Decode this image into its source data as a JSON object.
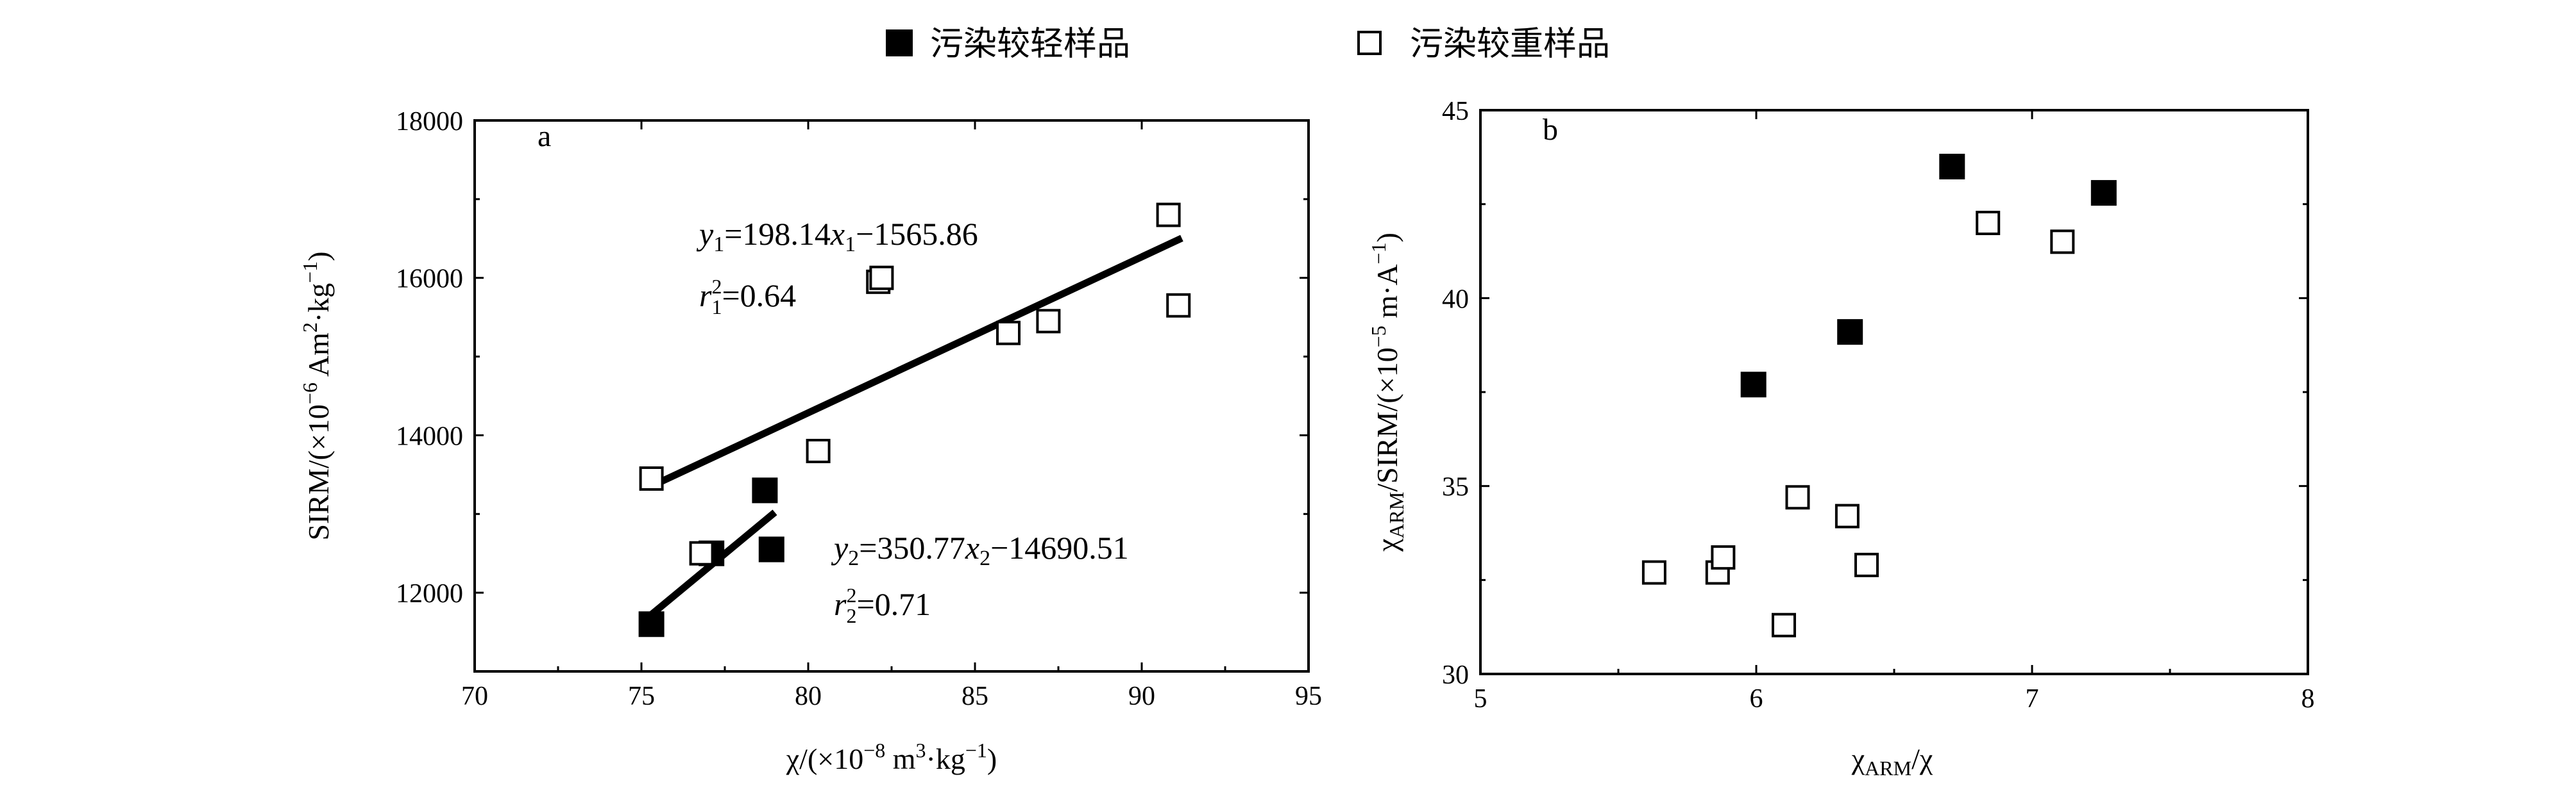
{
  "legend": {
    "light": "污染较轻样品",
    "heavy": "污染较重样品"
  },
  "chart_data": [
    {
      "type": "scatter",
      "panel_label": "a",
      "xlabel": {
        "pre": "χ/(×10",
        "exp1": "−8",
        "mid": " m",
        "exp2": "3",
        "mid2": "·kg",
        "exp3": "−1",
        "post": ")"
      },
      "ylabel": {
        "pre": "SIRM/(×10",
        "exp1": "−6",
        "mid": " Am",
        "exp2": "2",
        "mid2": "·kg",
        "exp3": "−1",
        "post": ")"
      },
      "xlim": [
        70,
        95
      ],
      "ylim": [
        11000,
        18000
      ],
      "xticks": [
        70,
        75,
        80,
        85,
        90,
        95
      ],
      "yticks": [
        12000,
        14000,
        16000,
        18000
      ],
      "series": [
        {
          "name": "污染较轻样品",
          "marker": "filled-square",
          "points": [
            [
              75.3,
              11600
            ],
            [
              77.1,
              12500
            ],
            [
              78.7,
              13300
            ],
            [
              78.9,
              12550
            ]
          ]
        },
        {
          "name": "污染较重样品",
          "marker": "open-square",
          "points": [
            [
              75.3,
              13450
            ],
            [
              76.8,
              12500
            ],
            [
              80.3,
              13800
            ],
            [
              82.1,
              15950
            ],
            [
              82.2,
              16000
            ],
            [
              86.0,
              15300
            ],
            [
              87.2,
              15450
            ],
            [
              90.8,
              16800
            ],
            [
              91.1,
              15650
            ]
          ]
        }
      ],
      "fit_lines": [
        {
          "series": "污染较重样品",
          "x": [
            75.2,
            91.2
          ],
          "slope": 198.14,
          "intercept": -1565.86,
          "eq_text": {
            "yvar": "y",
            "ysub": "1",
            "coef": "=198.14",
            "xvar": "x",
            "xsub": "1",
            "rest": "−1565.86"
          },
          "r2_text": {
            "r": "r",
            "sup": "2",
            "sub": "1",
            "val": "=0.64"
          }
        },
        {
          "series": "污染较轻样品",
          "x": [
            75.2,
            79.0
          ],
          "slope": 350.77,
          "intercept": -14690.51,
          "eq_text": {
            "yvar": "y",
            "ysub": "2",
            "coef": "=350.77",
            "xvar": "x",
            "xsub": "2",
            "rest": "−14690.51"
          },
          "r2_text": {
            "r": "r",
            "sup": "2",
            "sub": "2",
            "val": "=0.71"
          }
        }
      ]
    },
    {
      "type": "scatter",
      "panel_label": "b",
      "xlabel": {
        "pre": "χ",
        "sub1": "ARM",
        "post": "/χ"
      },
      "ylabel": {
        "pre": "χ",
        "sub1": "ARM",
        "mid": "/SIRM/(×10",
        "exp1": "−5",
        "mid2": " m·A",
        "exp2": "−1",
        "post": ")"
      },
      "xlim": [
        5,
        8
      ],
      "ylim": [
        30,
        45
      ],
      "xticks": [
        5,
        6,
        7,
        8
      ],
      "yticks": [
        30,
        35,
        40,
        45
      ],
      "series": [
        {
          "name": "污染较轻样品",
          "marker": "filled-square",
          "points": [
            [
              5.99,
              37.7
            ],
            [
              6.34,
              39.1
            ],
            [
              6.71,
              43.5
            ],
            [
              7.26,
              42.8
            ]
          ]
        },
        {
          "name": "污染较重样品",
          "marker": "open-square",
          "points": [
            [
              5.63,
              32.7
            ],
            [
              5.86,
              32.7
            ],
            [
              5.88,
              33.1
            ],
            [
              6.1,
              31.3
            ],
            [
              6.15,
              34.7
            ],
            [
              6.33,
              34.2
            ],
            [
              6.4,
              32.9
            ],
            [
              6.84,
              42.0
            ],
            [
              7.11,
              41.5
            ]
          ]
        }
      ]
    }
  ]
}
